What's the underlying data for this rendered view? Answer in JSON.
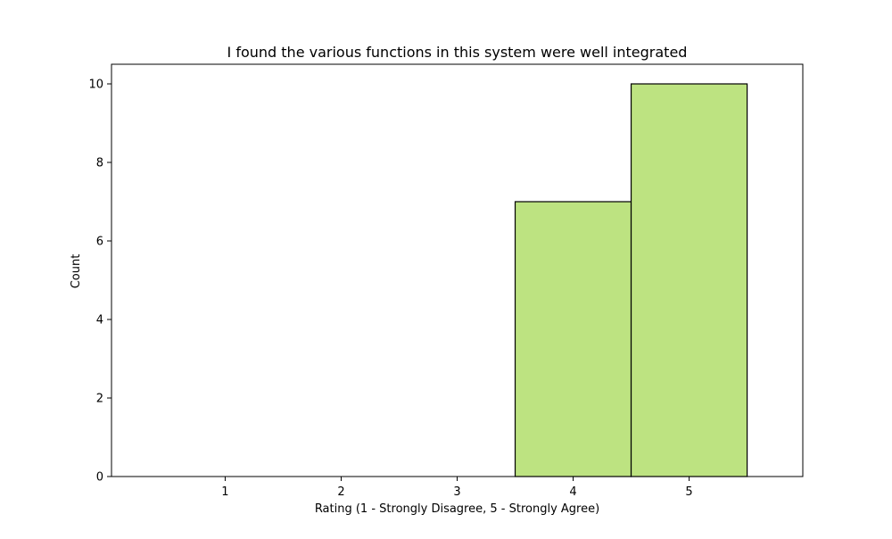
{
  "chart_data": {
    "type": "bar",
    "title": "I found the various functions in this system were well integrated",
    "xlabel": "Rating (1 - Strongly Disagree, 5 - Strongly Agree)",
    "ylabel": "Count",
    "categories": [
      "1",
      "2",
      "3",
      "4",
      "5"
    ],
    "values": [
      0,
      0,
      0,
      7,
      10
    ],
    "xlim": [
      0.02,
      5.98
    ],
    "ylim": [
      0,
      10.5
    ],
    "yticks": [
      "0",
      "2",
      "4",
      "6",
      "8",
      "10"
    ],
    "bar_color": "#bde381",
    "edge_color": "#000000",
    "grid": false,
    "legend": "none"
  }
}
